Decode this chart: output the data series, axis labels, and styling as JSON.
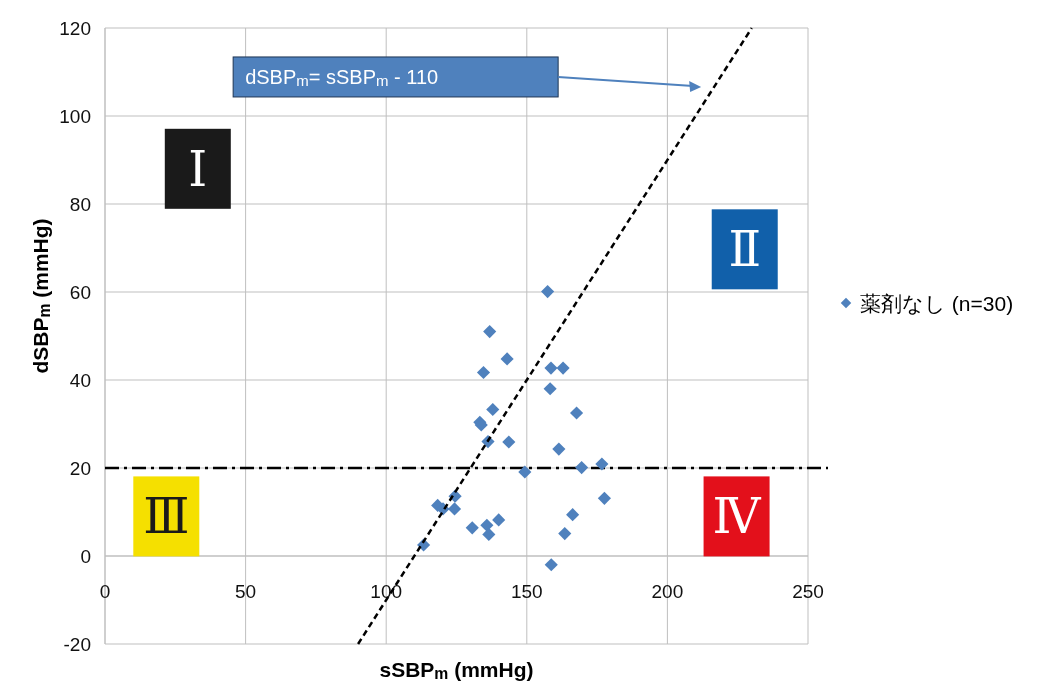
{
  "chart_data": {
    "type": "scatter",
    "xlabel": "sSBP$_{m}$ (mmHg)",
    "ylabel": "dSBP$_{m}$ (mmHg)",
    "xlim": [
      0,
      250
    ],
    "xticks": [
      0,
      50,
      100,
      150,
      200,
      250
    ],
    "ylim": [
      -20,
      120
    ],
    "yticks": [
      -20,
      0,
      20,
      40,
      60,
      80,
      100,
      120
    ],
    "grid": true,
    "legend": "right",
    "series": [
      {
        "name": "薬剤なし (n=30)",
        "color": "#4f81bd",
        "marker": "diamond",
        "x": [
          157.4,
          136.8,
          143.0,
          134.6,
          158.6,
          162.9,
          158.3,
          137.9,
          167.7,
          133.3,
          133.8,
          136.2,
          143.6,
          161.4,
          149.3,
          169.5,
          176.7,
          177.6,
          124.5,
          118.3,
          120.2,
          124.3,
          166.3,
          140.0,
          130.6,
          135.8,
          136.5,
          163.5,
          113.3,
          158.7
        ],
        "values": [
          60.1,
          51.0,
          44.8,
          41.7,
          42.7,
          42.7,
          38.0,
          33.3,
          32.5,
          30.4,
          29.8,
          26.0,
          25.9,
          24.3,
          19.1,
          20.1,
          20.9,
          13.1,
          13.6,
          11.5,
          10.7,
          10.7,
          9.4,
          8.2,
          6.4,
          7.0,
          4.9,
          5.1,
          2.5,
          -2.0
        ]
      },
      {
        "type": "line",
        "color": "#000000",
        "line_style": "dashed",
        "marker": "none",
        "x": [
          90,
          230
        ],
        "values": [
          -20,
          120
        ]
      }
    ],
    "ref_lines": [
      {
        "axis": "y",
        "value": 20,
        "color": "#000000",
        "line_style": "dashdot"
      }
    ],
    "annotations": [
      "dSBP$_{m}$= sSBP$_{m}$ - 110",
      "Ⅰ",
      "Ⅱ",
      "Ⅲ",
      "Ⅳ"
    ]
  }
}
